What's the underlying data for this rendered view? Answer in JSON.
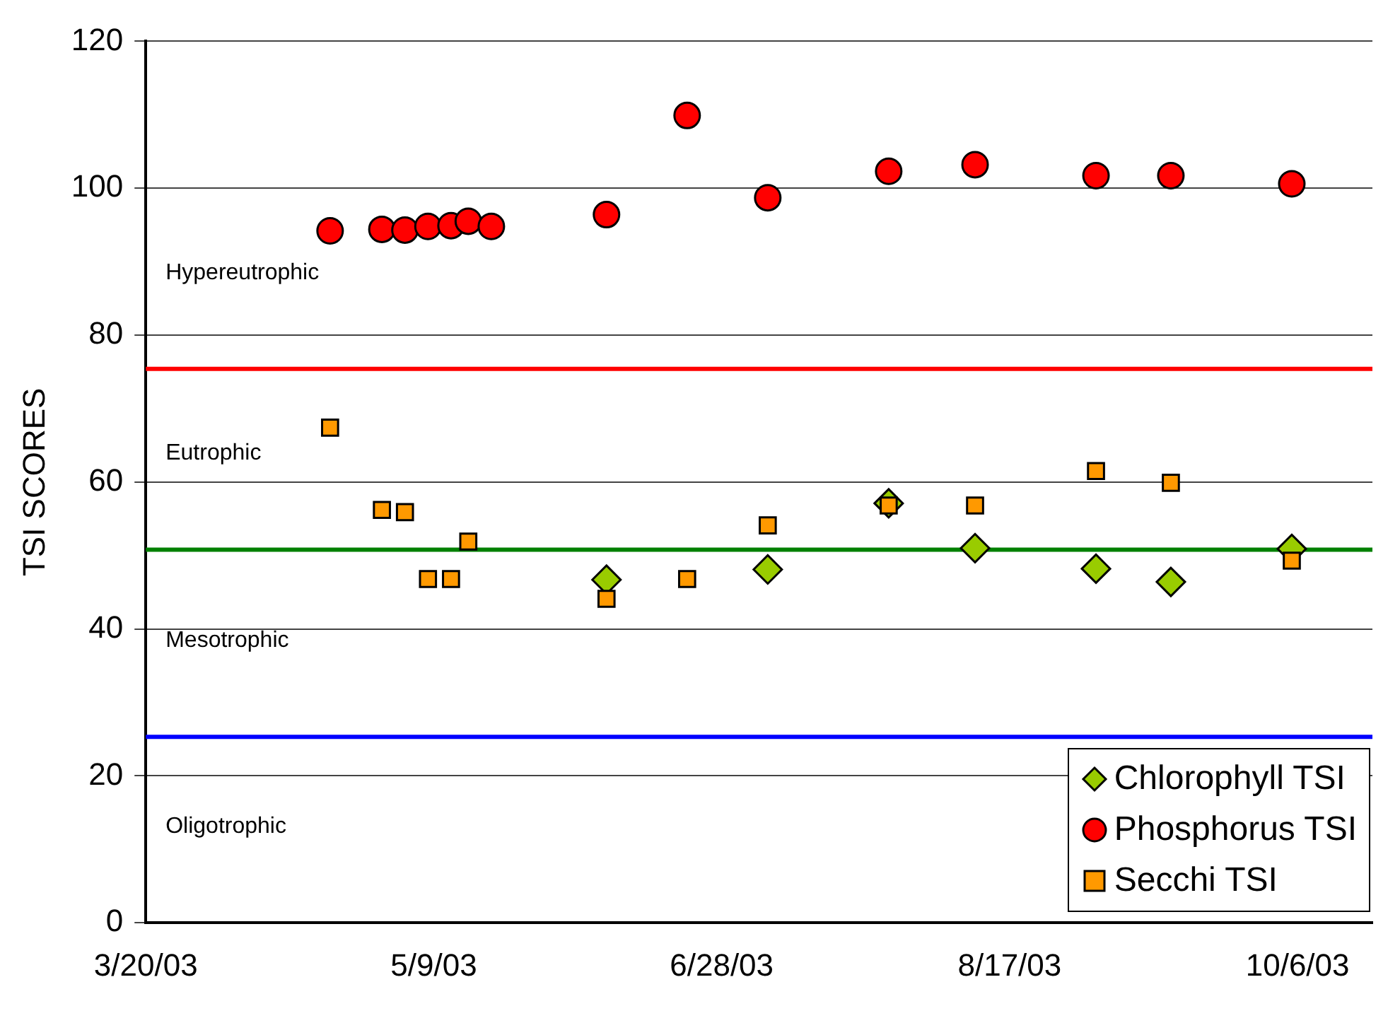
{
  "chart_data": {
    "type": "scatter",
    "ylabel": "TSI SCORES",
    "xlim": [
      "2003-03-20",
      "2003-10-19"
    ],
    "xticks": [
      {
        "value": "2003-03-20",
        "label": "3/20/03"
      },
      {
        "value": "2003-05-09",
        "label": "5/9/03"
      },
      {
        "value": "2003-06-28",
        "label": "6/28/03"
      },
      {
        "value": "2003-08-17",
        "label": "8/17/03"
      },
      {
        "value": "2003-10-06",
        "label": "10/6/03"
      }
    ],
    "ylim": [
      0,
      120
    ],
    "yticks": [
      0,
      20,
      40,
      60,
      80,
      100,
      120
    ],
    "grid": "y",
    "legend": "bottom right",
    "series": [
      {
        "name": "Chlorophyll TSI",
        "color": "#99cc00",
        "marker": "diamond",
        "x": [
          "2003-06-08",
          "2003-07-06",
          "2003-07-27",
          "2003-08-11",
          "2003-09-01",
          "2003-09-14",
          "2003-10-05"
        ],
        "values": [
          46.7,
          48.1,
          57.1,
          51.0,
          48.2,
          46.4,
          50.9
        ]
      },
      {
        "name": "Phosphorus TSI",
        "color": "#ff0000",
        "marker": "circle",
        "x": [
          "2003-04-21",
          "2003-04-30",
          "2003-05-04",
          "2003-05-08",
          "2003-05-12",
          "2003-05-15",
          "2003-05-19",
          "2003-06-08",
          "2003-06-22",
          "2003-07-06",
          "2003-07-27",
          "2003-08-11",
          "2003-09-01",
          "2003-09-14",
          "2003-10-05"
        ],
        "values": [
          94.2,
          94.4,
          94.3,
          94.8,
          94.9,
          95.5,
          94.8,
          96.4,
          109.9,
          98.7,
          102.3,
          103.2,
          101.7,
          101.7,
          100.6
        ]
      },
      {
        "name": "Secchi TSI",
        "color": "#ff9900",
        "marker": "square",
        "x": [
          "2003-04-21",
          "2003-04-30",
          "2003-05-04",
          "2003-05-08",
          "2003-05-12",
          "2003-05-15",
          "2003-06-08",
          "2003-06-22",
          "2003-07-06",
          "2003-07-27",
          "2003-08-11",
          "2003-09-01",
          "2003-09-14",
          "2003-10-05"
        ],
        "values": [
          67.4,
          56.2,
          55.9,
          46.8,
          46.8,
          51.9,
          44.1,
          46.8,
          54.1,
          56.8,
          56.8,
          61.5,
          59.9,
          49.3
        ]
      }
    ],
    "ref_lines": [
      {
        "axis": "y",
        "value": 75.4,
        "color": "#ff0000"
      },
      {
        "axis": "y",
        "value": 50.8,
        "color": "#008000"
      },
      {
        "axis": "y",
        "value": 25.3,
        "color": "#0000ff"
      }
    ],
    "annotations": [
      "Hypereutrophic",
      "Eutrophic",
      "Mesotrophic",
      "Oligotrophic"
    ]
  }
}
